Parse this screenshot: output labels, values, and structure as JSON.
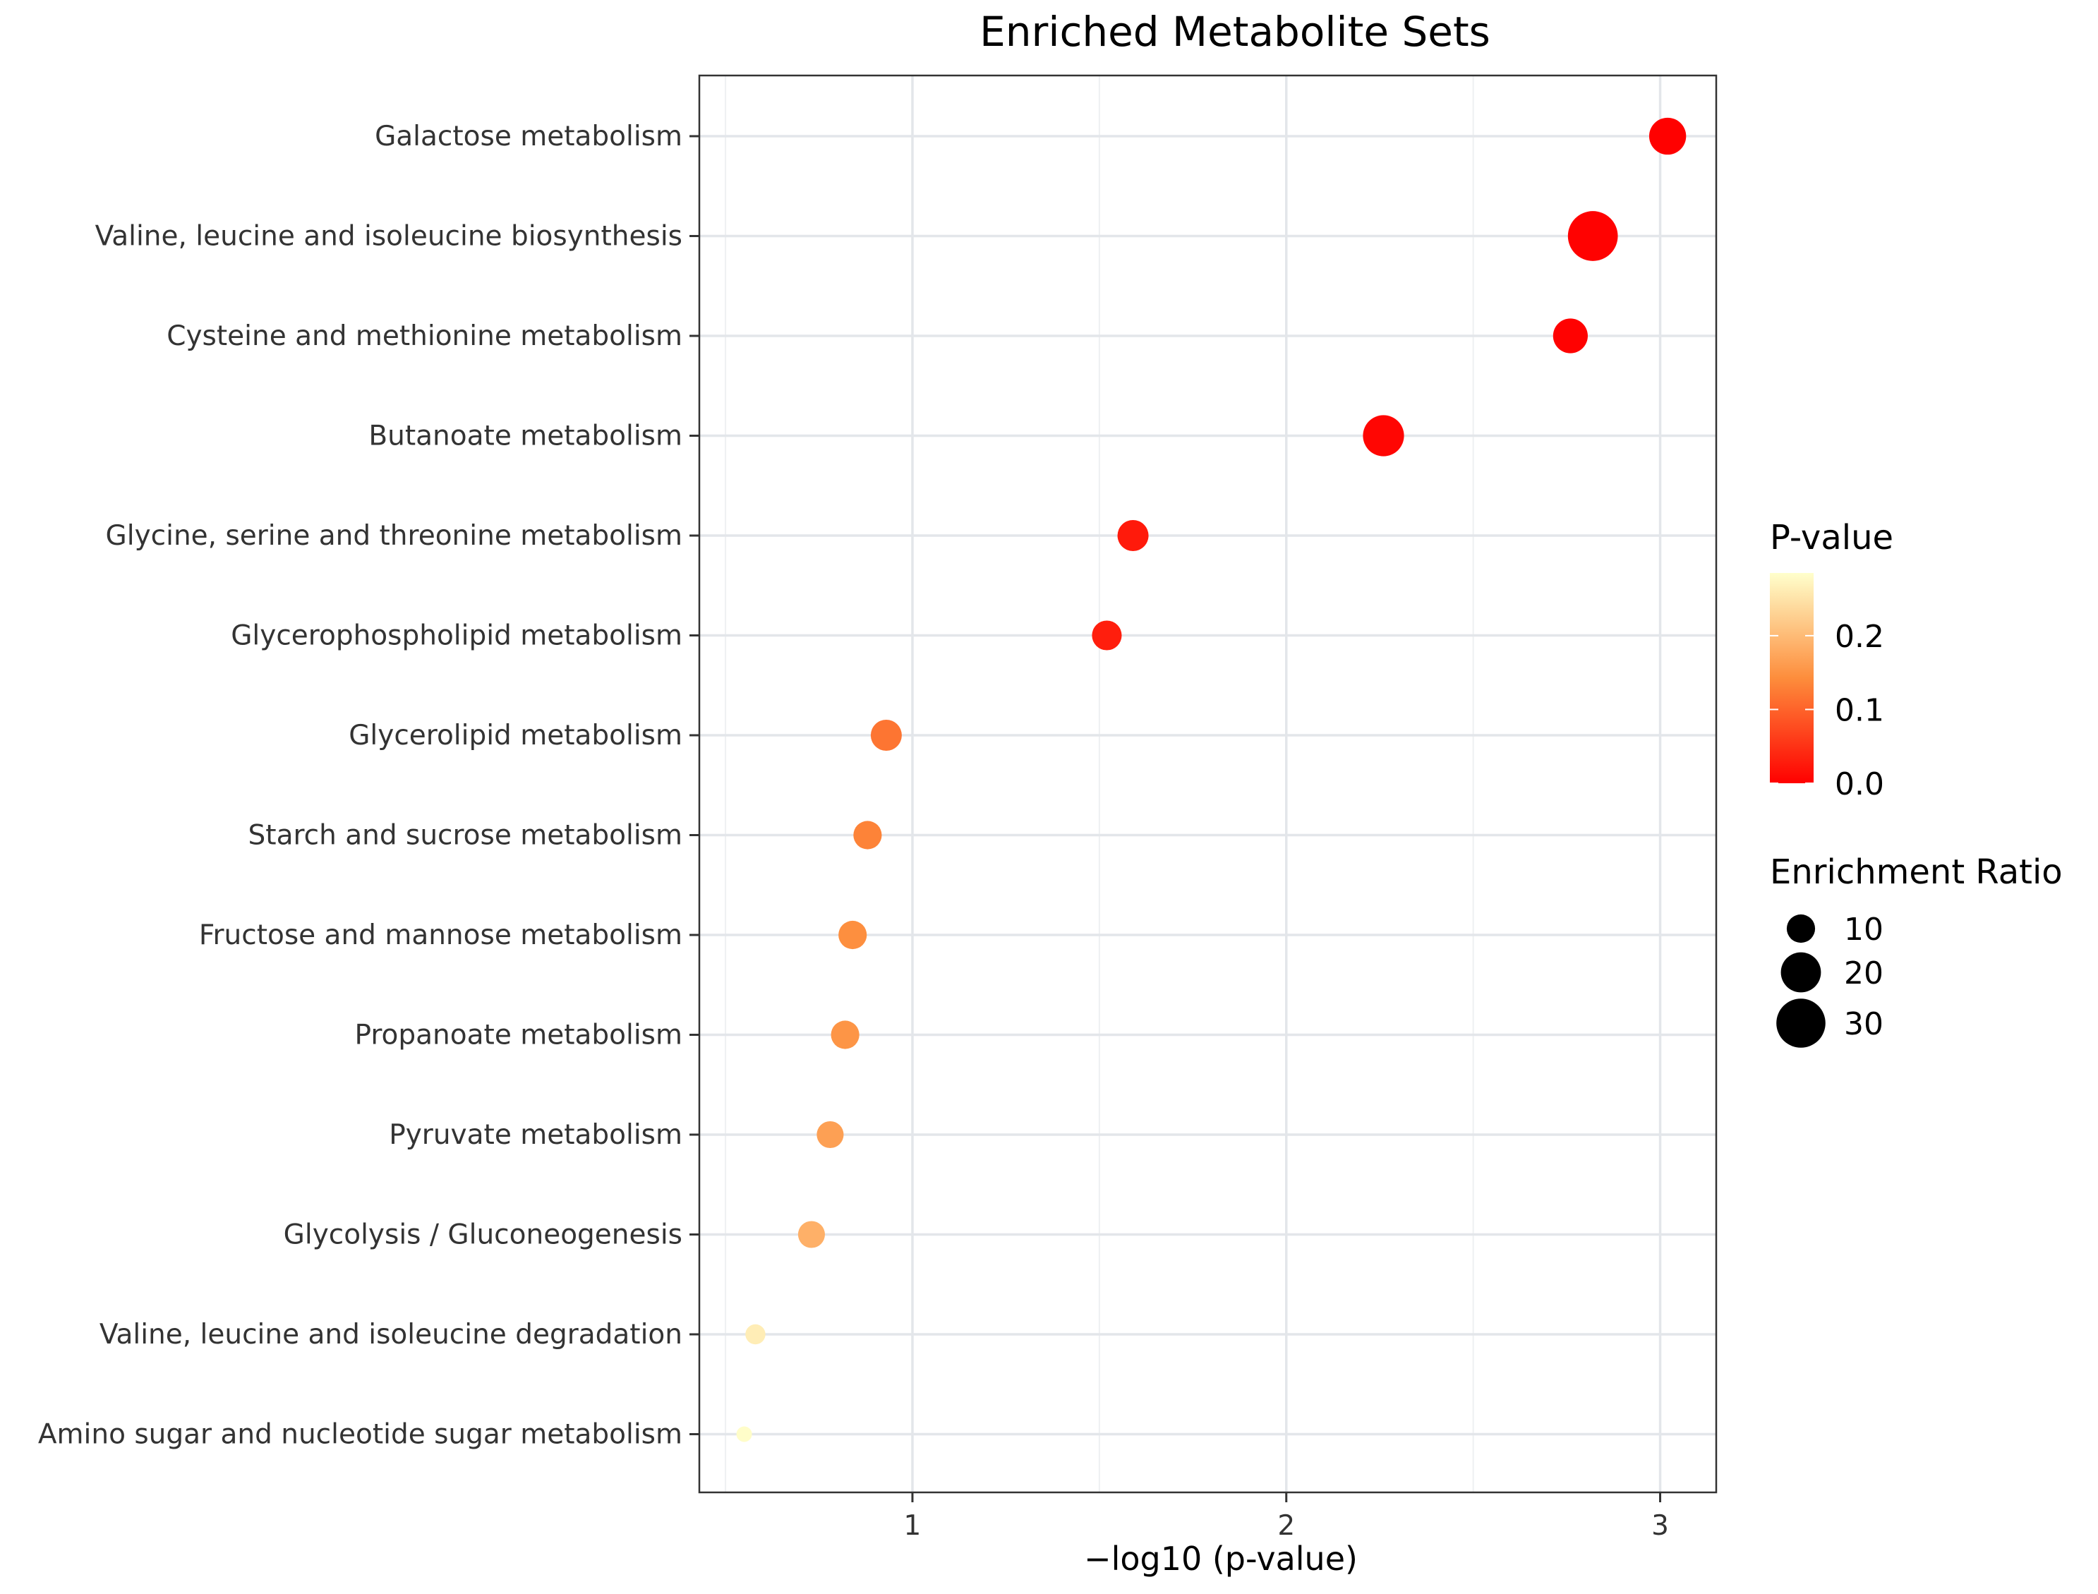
{
  "chart_data": {
    "type": "scatter",
    "title": "Enriched Metabolite Sets",
    "xlabel": "−log10 (p-value)",
    "ylabel": "",
    "xlim": [
      0.43,
      3.15
    ],
    "x_ticks": [
      1,
      2,
      3
    ],
    "x_minor_ticks": [
      0.5,
      1.5,
      2.5
    ],
    "grid": true,
    "categories": [
      "Galactose metabolism",
      "Valine, leucine and isoleucine biosynthesis",
      "Cysteine and methionine metabolism",
      "Butanoate metabolism",
      "Glycine, serine and threonine metabolism",
      "Glycerophospholipid metabolism",
      "Glycerolipid metabolism",
      "Starch and sucrose metabolism",
      "Fructose and mannose metabolism",
      "Propanoate metabolism",
      "Pyruvate metabolism",
      "Glycolysis / Gluconeogenesis",
      "Valine, leucine and isoleucine degradation",
      "Amino sugar and nucleotide sugar metabolism"
    ],
    "x": [
      3.02,
      2.82,
      2.76,
      2.26,
      1.59,
      1.52,
      0.93,
      0.88,
      0.84,
      0.82,
      0.78,
      0.73,
      0.58,
      0.55
    ],
    "p_value": [
      0.001,
      0.002,
      0.002,
      0.006,
      0.026,
      0.03,
      0.118,
      0.132,
      0.145,
      0.152,
      0.166,
      0.186,
      0.263,
      0.282
    ],
    "enrichment_ratio": [
      17,
      31,
      15,
      21,
      12,
      11,
      12,
      10,
      10,
      10,
      9,
      9,
      5,
      3
    ],
    "legend": {
      "color_title": "P-value",
      "color_ticks": [
        "0.2",
        "0.1",
        "0.0"
      ],
      "color_tick_values": [
        0.2,
        0.1,
        0.0
      ],
      "color_range": [
        0.0,
        0.285
      ],
      "color_low": "#ff0000",
      "color_high": "#ffffcc",
      "size_title": "Enrichment Ratio",
      "size_ticks": [
        "10",
        "20",
        "30"
      ],
      "size_tick_values": [
        10,
        20,
        30
      ],
      "placement": "right"
    }
  }
}
